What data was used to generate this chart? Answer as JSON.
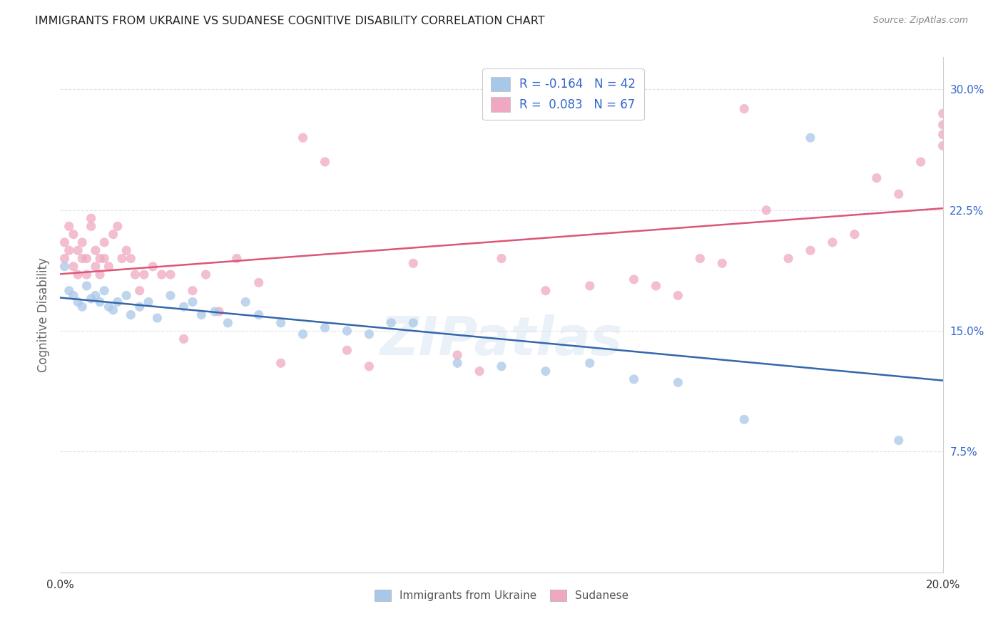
{
  "title": "IMMIGRANTS FROM UKRAINE VS SUDANESE COGNITIVE DISABILITY CORRELATION CHART",
  "source": "Source: ZipAtlas.com",
  "ylabel": "Cognitive Disability",
  "xlim": [
    0.0,
    0.2
  ],
  "ylim": [
    0.0,
    0.32
  ],
  "yticks": [
    0.075,
    0.15,
    0.225,
    0.3
  ],
  "ytick_labels": [
    "7.5%",
    "15.0%",
    "22.5%",
    "30.0%"
  ],
  "xticks": [
    0.0,
    0.04,
    0.08,
    0.12,
    0.16,
    0.2
  ],
  "xtick_labels": [
    "0.0%",
    "",
    "",
    "",
    "",
    "20.0%"
  ],
  "legend_r_entries": [
    {
      "label": "R = -0.164   N = 42",
      "color": "#aac4e8"
    },
    {
      "label": "R =  0.083   N = 67",
      "color": "#f5b8c8"
    }
  ],
  "ukraine_color": "#a8c8e8",
  "sudanese_color": "#f0a8c0",
  "ukraine_line_color": "#3366aa",
  "sudanese_line_color": "#dd5577",
  "background_color": "#ffffff",
  "grid_color": "#e0e0ec",
  "watermark": "ZIPatlas",
  "ukraine_x": [
    0.001,
    0.002,
    0.003,
    0.004,
    0.005,
    0.006,
    0.007,
    0.008,
    0.009,
    0.01,
    0.011,
    0.012,
    0.013,
    0.015,
    0.016,
    0.018,
    0.02,
    0.022,
    0.025,
    0.028,
    0.03,
    0.032,
    0.035,
    0.038,
    0.042,
    0.045,
    0.05,
    0.055,
    0.06,
    0.065,
    0.07,
    0.075,
    0.08,
    0.09,
    0.1,
    0.11,
    0.12,
    0.13,
    0.14,
    0.155,
    0.17,
    0.19
  ],
  "ukraine_y": [
    0.19,
    0.175,
    0.172,
    0.168,
    0.165,
    0.178,
    0.17,
    0.172,
    0.168,
    0.175,
    0.165,
    0.163,
    0.168,
    0.172,
    0.16,
    0.165,
    0.168,
    0.158,
    0.172,
    0.165,
    0.168,
    0.16,
    0.162,
    0.155,
    0.168,
    0.16,
    0.155,
    0.148,
    0.152,
    0.15,
    0.148,
    0.155,
    0.155,
    0.13,
    0.128,
    0.125,
    0.13,
    0.12,
    0.118,
    0.095,
    0.27,
    0.082
  ],
  "sudanese_x": [
    0.001,
    0.001,
    0.002,
    0.002,
    0.003,
    0.003,
    0.004,
    0.004,
    0.005,
    0.005,
    0.006,
    0.006,
    0.007,
    0.007,
    0.008,
    0.008,
    0.009,
    0.009,
    0.01,
    0.01,
    0.011,
    0.012,
    0.013,
    0.014,
    0.015,
    0.016,
    0.017,
    0.018,
    0.019,
    0.021,
    0.023,
    0.025,
    0.028,
    0.03,
    0.033,
    0.036,
    0.04,
    0.045,
    0.05,
    0.055,
    0.06,
    0.065,
    0.07,
    0.08,
    0.09,
    0.095,
    0.1,
    0.11,
    0.12,
    0.13,
    0.135,
    0.14,
    0.145,
    0.15,
    0.155,
    0.16,
    0.165,
    0.17,
    0.175,
    0.18,
    0.185,
    0.19,
    0.195,
    0.2,
    0.2,
    0.2,
    0.2
  ],
  "sudanese_y": [
    0.195,
    0.205,
    0.2,
    0.215,
    0.19,
    0.21,
    0.185,
    0.2,
    0.195,
    0.205,
    0.185,
    0.195,
    0.215,
    0.22,
    0.19,
    0.2,
    0.185,
    0.195,
    0.205,
    0.195,
    0.19,
    0.21,
    0.215,
    0.195,
    0.2,
    0.195,
    0.185,
    0.175,
    0.185,
    0.19,
    0.185,
    0.185,
    0.145,
    0.175,
    0.185,
    0.162,
    0.195,
    0.18,
    0.13,
    0.27,
    0.255,
    0.138,
    0.128,
    0.192,
    0.135,
    0.125,
    0.195,
    0.175,
    0.178,
    0.182,
    0.178,
    0.172,
    0.195,
    0.192,
    0.288,
    0.225,
    0.195,
    0.2,
    0.205,
    0.21,
    0.245,
    0.235,
    0.255,
    0.265,
    0.272,
    0.278,
    0.285
  ]
}
